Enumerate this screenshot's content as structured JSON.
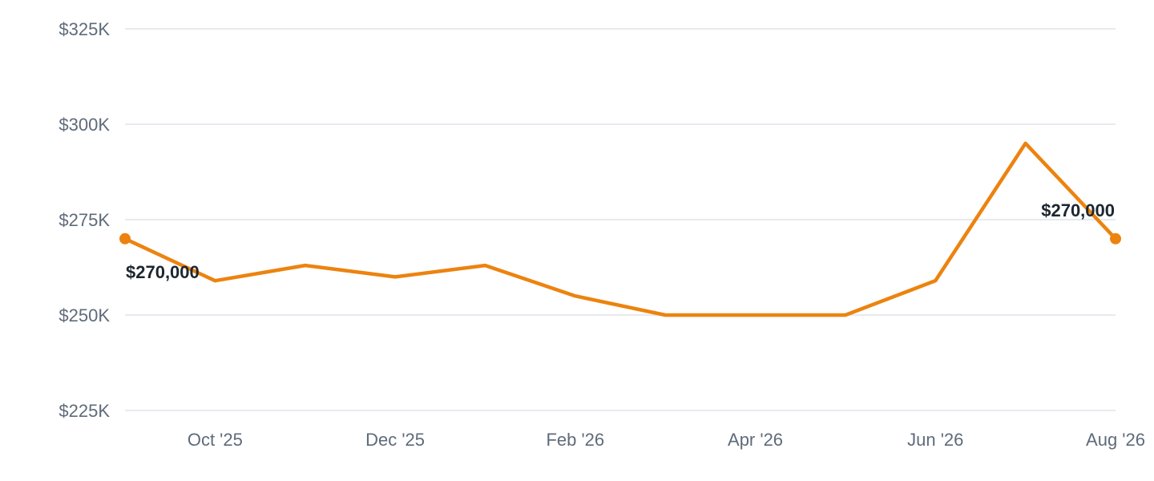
{
  "chart_data": {
    "type": "line",
    "x": [
      "2025-09",
      "2025-10",
      "2025-11",
      "2025-12",
      "2026-01",
      "2026-02",
      "2026-03",
      "2026-04",
      "2026-05",
      "2026-06",
      "2026-07",
      "2026-08"
    ],
    "series": [
      {
        "values": [
          270000,
          259000,
          263000,
          260000,
          263000,
          255000,
          250000,
          250000,
          250000,
          259000,
          295000,
          270000
        ],
        "color": "#ec830f"
      }
    ],
    "xticks": [
      {
        "x": "2025-10",
        "label": "Oct '25"
      },
      {
        "x": "2025-12",
        "label": "Dec '25"
      },
      {
        "x": "2026-02",
        "label": "Feb '26"
      },
      {
        "x": "2026-04",
        "label": "Apr '26"
      },
      {
        "x": "2026-06",
        "label": "Jun '26"
      },
      {
        "x": "2026-08",
        "label": "Aug '26"
      }
    ],
    "yticks": [
      {
        "value": 225000,
        "label": "$225K"
      },
      {
        "value": 250000,
        "label": "$250K"
      },
      {
        "value": 275000,
        "label": "$275K"
      },
      {
        "value": 300000,
        "label": "$300K"
      },
      {
        "value": 325000,
        "label": "$325K"
      }
    ],
    "ylim": [
      225000,
      325000
    ],
    "grid": true,
    "annotations": [
      {
        "x": "2025-09",
        "label": "$270,000",
        "marker": true
      },
      {
        "x": "2026-08",
        "label": "$270,000",
        "marker": true
      }
    ],
    "title": "",
    "xlabel": "",
    "ylabel": ""
  }
}
